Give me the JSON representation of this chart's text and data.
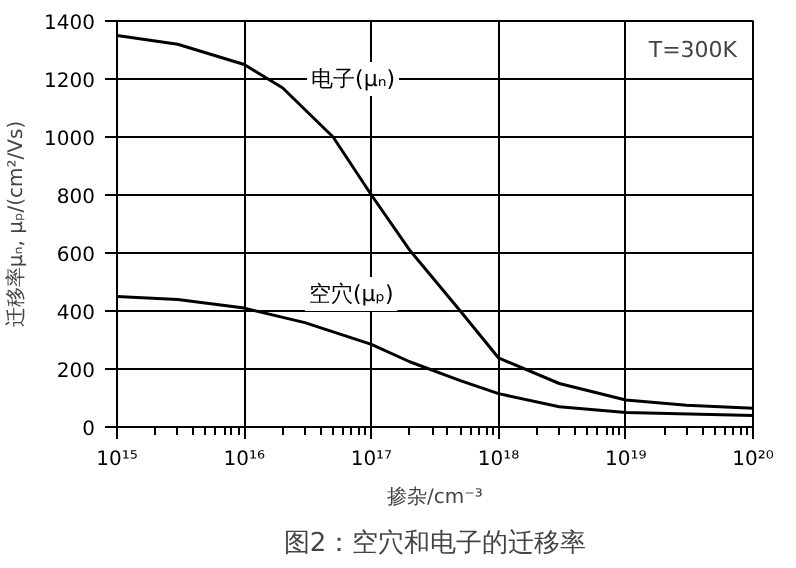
{
  "chart_data": {
    "type": "line",
    "title": "图2：空穴和电子的迁移率",
    "xlabel": "掺杂/cm⁻³",
    "ylabel": "迁移率μₙ, μₚ/(cm²/Vs)",
    "log": "x",
    "grid": true,
    "marker": "none",
    "line_style": "solid",
    "annotations": [
      "T=300K"
    ],
    "xlim": [
      1000000000000000.0,
      1e+20
    ],
    "ylim": [
      0,
      1400
    ],
    "xticks": [
      {
        "value": 1000000000000000.0,
        "label": "10¹⁵"
      },
      {
        "value": 1e+16,
        "label": "10¹⁶"
      },
      {
        "value": 1e+17,
        "label": "10¹⁷"
      },
      {
        "value": 1e+18,
        "label": "10¹⁸"
      },
      {
        "value": 1e+19,
        "label": "10¹⁹"
      },
      {
        "value": 1e+20,
        "label": "10²⁰"
      }
    ],
    "yticks": [
      0,
      200,
      400,
      600,
      800,
      1000,
      1200,
      1400
    ],
    "series": [
      {
        "name": "电子(μₙ)",
        "color": "#000000",
        "x": [
          1000000000000000.0,
          3000000000000000.0,
          1e+16,
          2e+16,
          5e+16,
          1e+17,
          2e+17,
          5e+17,
          1e+18,
          3e+18,
          1e+19,
          3e+19,
          1e+20
        ],
        "values": [
          1350,
          1320,
          1250,
          1170,
          1000,
          800,
          610,
          400,
          238,
          150,
          93,
          75,
          65
        ]
      },
      {
        "name": "空穴(μₚ)",
        "color": "#000000",
        "x": [
          1000000000000000.0,
          3000000000000000.0,
          1e+16,
          3e+16,
          1e+17,
          2e+17,
          5e+17,
          1e+18,
          3e+18,
          1e+19,
          1e+20
        ],
        "values": [
          450,
          440,
          410,
          360,
          285,
          225,
          160,
          115,
          70,
          50,
          40
        ]
      }
    ]
  }
}
